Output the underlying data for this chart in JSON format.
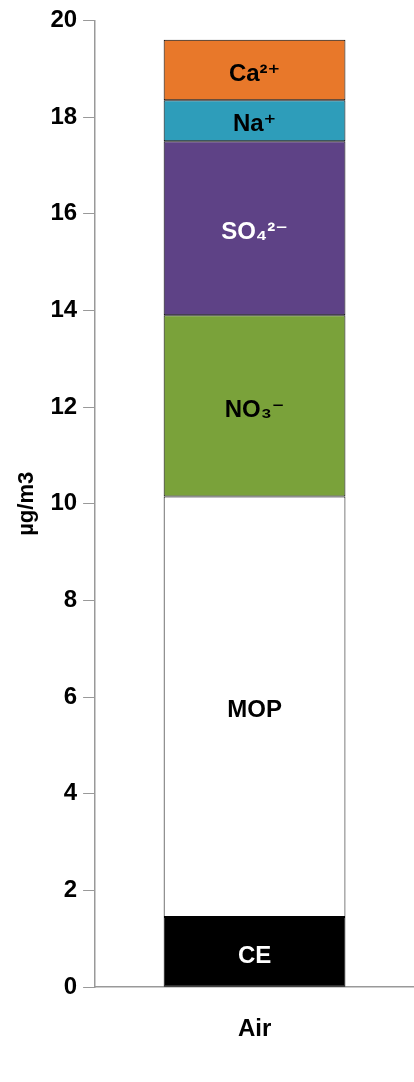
{
  "chart_data": {
    "type": "bar",
    "stacked": true,
    "categories": [
      "Air"
    ],
    "ylabel": "µg/m3",
    "ylim": [
      0,
      20
    ],
    "yticks": [
      0,
      2,
      4,
      6,
      8,
      10,
      12,
      14,
      16,
      18,
      20
    ],
    "grid": false,
    "legend": false,
    "series": [
      {
        "name": "CE",
        "color": "#000000",
        "values": [
          1.45
        ]
      },
      {
        "name": "MOP",
        "color": "#ffffff",
        "values": [
          8.7
        ]
      },
      {
        "name": "NO₃⁻",
        "color": "#7aa23a",
        "values": [
          3.75
        ]
      },
      {
        "name": "SO₄²⁻",
        "color": "#5e4286",
        "values": [
          3.6
        ]
      },
      {
        "name": "Na⁺",
        "color": "#2e9dba",
        "values": [
          0.85
        ]
      },
      {
        "name": "Ca²⁺",
        "color": "#e8782a",
        "values": [
          1.25
        ]
      }
    ]
  }
}
